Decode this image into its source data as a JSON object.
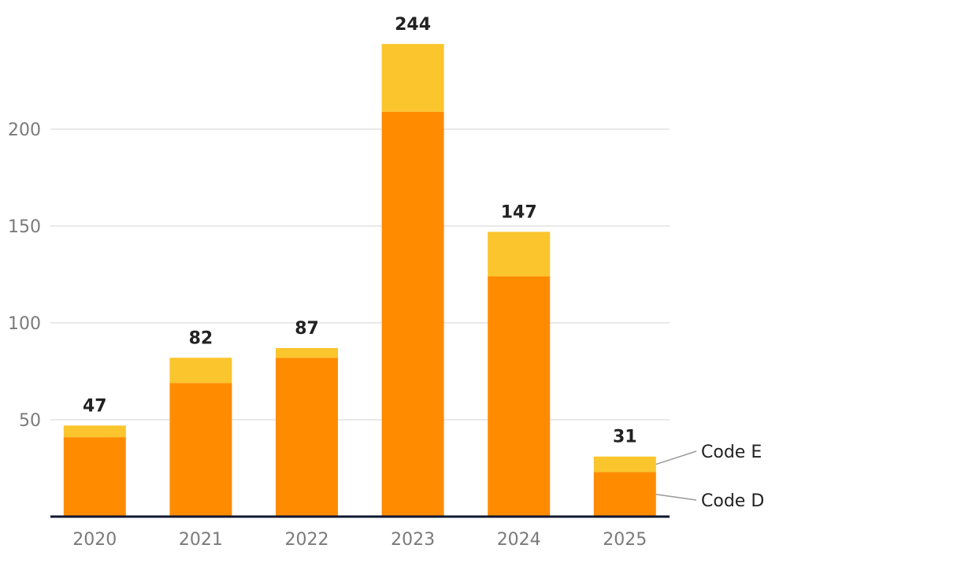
{
  "chart_data": {
    "type": "bar",
    "stacked": true,
    "categories": [
      "2020",
      "2021",
      "2022",
      "2023",
      "2024",
      "2025"
    ],
    "series": [
      {
        "name": "Code D",
        "values": [
          41,
          69,
          82,
          209,
          124,
          23
        ],
        "color": "#ff8c00"
      },
      {
        "name": "Code E",
        "values": [
          6,
          13,
          5,
          35,
          23,
          8
        ],
        "color": "#fac52d"
      }
    ],
    "totals": [
      "47",
      "82",
      "87",
      "244",
      "147",
      "31"
    ],
    "y_ticks": [
      {
        "value": 50,
        "label": "50"
      },
      {
        "value": 100,
        "label": "100"
      },
      {
        "value": 150,
        "label": "150"
      },
      {
        "value": 200,
        "label": "200"
      }
    ],
    "ylim": [
      0,
      250
    ],
    "title": "",
    "xlabel": "",
    "ylabel": "",
    "grid": true,
    "legend": "inline-right",
    "colors": {
      "gridline": "#e2e2e2",
      "axis": "#0f1730",
      "leader": "#9a9a9a"
    }
  }
}
